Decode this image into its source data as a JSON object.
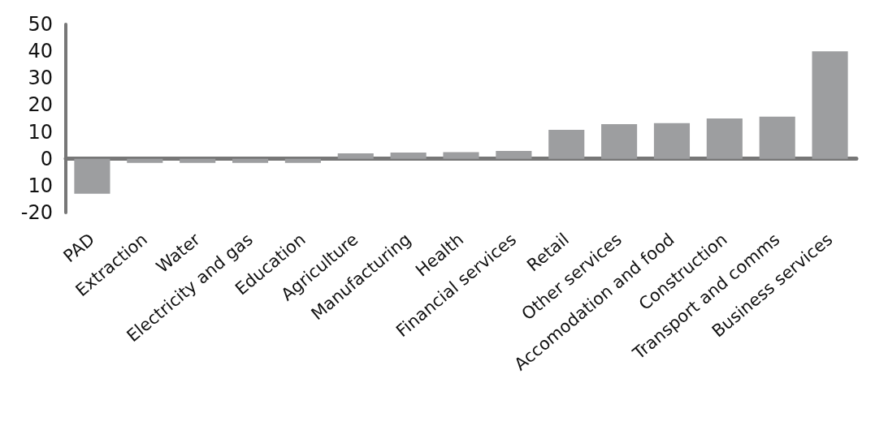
{
  "chart_data": {
    "type": "bar",
    "categories": [
      "PAD",
      "Extraction",
      "Water",
      "Electricity and gas",
      "Education",
      "Agriculture",
      "Manufacturing",
      "Health",
      "Financial services",
      "Retail",
      "Other services",
      "Accomodation and food",
      "Construction",
      "Transport and comms",
      "Business services"
    ],
    "values": [
      -13,
      -1.5,
      -1.5,
      -1.5,
      -1.5,
      2,
      2.3,
      2.5,
      2.9,
      10.8,
      12.9,
      13.3,
      15,
      15.7,
      40
    ],
    "color": "#9d9ea0",
    "ylim": [
      -20,
      50
    ],
    "yticks": [
      {
        "value": -20,
        "label": "-20"
      },
      {
        "value": -10,
        "label": "10"
      },
      0,
      10,
      20,
      30,
      40,
      50
    ]
  }
}
